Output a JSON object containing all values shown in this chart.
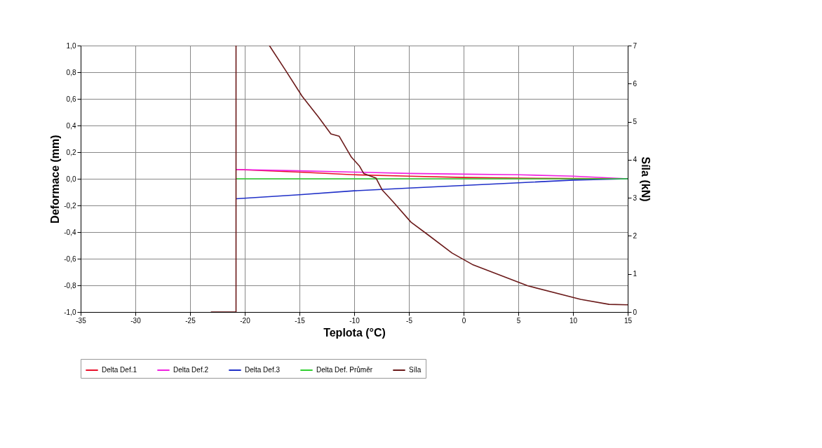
{
  "chart_data": {
    "type": "line",
    "xlabel": "Teplota  (°C)",
    "ylabel": "Deformace (mm)",
    "y2label": "Síla (kN)",
    "xlim": [
      -35,
      15
    ],
    "xticks": [
      -35,
      -30,
      -25,
      -20,
      -15,
      -10,
      -5,
      0,
      5,
      10,
      15
    ],
    "ylim": [
      -1,
      1
    ],
    "yticks": [
      {
        "value": -1,
        "label": "-1,0"
      },
      {
        "value": -0.8,
        "label": "-0,8"
      },
      {
        "value": -0.6,
        "label": "-0,6"
      },
      {
        "value": -0.4,
        "label": "-0,4"
      },
      {
        "value": -0.2,
        "label": "-0,2"
      },
      {
        "value": 0,
        "label": "0,0"
      },
      {
        "value": 0.2,
        "label": "0,2"
      },
      {
        "value": 0.4,
        "label": "0,4"
      },
      {
        "value": 0.6,
        "label": "0,6"
      },
      {
        "value": 0.8,
        "label": "0,8"
      },
      {
        "value": 1,
        "label": "1,0"
      }
    ],
    "y2lim": [
      0,
      7
    ],
    "y2ticks": [
      0,
      1,
      2,
      3,
      4,
      5,
      6,
      7
    ],
    "grid": true,
    "legend": "bottom",
    "marker": "none",
    "line_style": "solid",
    "series": [
      {
        "name": "Delta Def.1",
        "color": "#e8102a",
        "x": [
          -20.8,
          -15,
          -10,
          -5,
          0,
          5,
          10,
          15
        ],
        "values": [
          0.07,
          0.05,
          0.03,
          0.02,
          0.01,
          0.005,
          0.002,
          0.0
        ]
      },
      {
        "name": "Delta Def.2",
        "color": "#f020e0",
        "x": [
          -20.8,
          -15,
          -10,
          -5,
          0,
          5,
          10,
          15
        ],
        "values": [
          0.07,
          0.06,
          0.05,
          0.04,
          0.035,
          0.03,
          0.02,
          0.0
        ]
      },
      {
        "name": "Delta Def.3",
        "color": "#2030c8",
        "x": [
          -20.8,
          -15,
          -10,
          -5,
          0,
          5,
          10,
          15
        ],
        "values": [
          -0.15,
          -0.12,
          -0.09,
          -0.07,
          -0.05,
          -0.03,
          -0.01,
          0.0
        ]
      },
      {
        "name": "Delta Def. Průměr",
        "color": "#30d030",
        "x": [
          -20.8,
          -10,
          0,
          10,
          15
        ],
        "values": [
          0.0,
          0.0,
          0.0,
          0.0,
          0.0
        ]
      },
      {
        "name": "Síla",
        "color": "#6b1a1a",
        "axis": "y2",
        "x": [
          -23.1,
          -20.8,
          -20.8,
          -19,
          -17.75,
          -16.25,
          -14.76,
          -13.26,
          -12.13,
          -11.38,
          -10.26,
          -9.51,
          -9.13,
          -8.01,
          -7.45,
          -6.49,
          -4.81,
          -3.31,
          -1.06,
          0.79,
          5.84,
          10.7,
          13.3,
          15
        ],
        "values": [
          0,
          0,
          7,
          null,
          7.0,
          6.34,
          5.67,
          5.12,
          4.68,
          4.62,
          4.07,
          3.83,
          3.64,
          3.52,
          3.21,
          2.91,
          2.36,
          2.04,
          1.55,
          1.25,
          0.69,
          0.33,
          0.2,
          0.19
        ]
      }
    ]
  }
}
